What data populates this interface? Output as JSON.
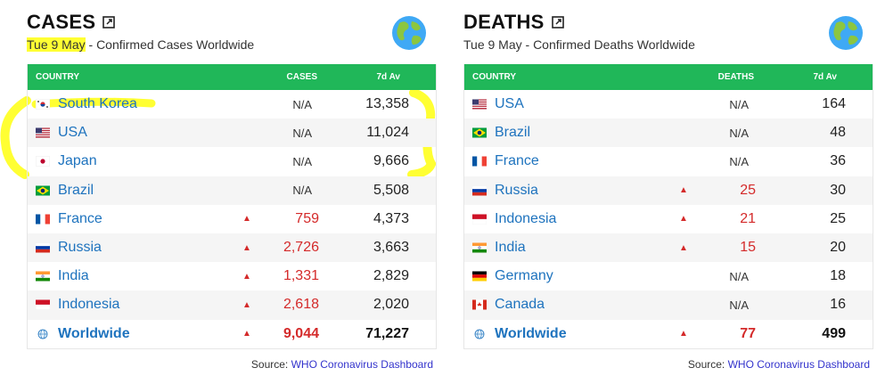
{
  "cases": {
    "title": "CASES",
    "date": "Tue 9 May",
    "subtitle_rest": " - Confirmed Cases Worldwide",
    "headers": {
      "country": "COUNTRY",
      "value": "CASES",
      "avg": "7d Av"
    },
    "rows": [
      {
        "country": "South Korea",
        "flag": "kr",
        "value": "N/A",
        "arrow": "",
        "avg": "13,358"
      },
      {
        "country": "USA",
        "flag": "us",
        "value": "N/A",
        "arrow": "",
        "avg": "11,024"
      },
      {
        "country": "Japan",
        "flag": "jp",
        "value": "N/A",
        "arrow": "",
        "avg": "9,666"
      },
      {
        "country": "Brazil",
        "flag": "br",
        "value": "N/A",
        "arrow": "",
        "avg": "5,508"
      },
      {
        "country": "France",
        "flag": "fr",
        "value": "759",
        "arrow": "▲",
        "avg": "4,373"
      },
      {
        "country": "Russia",
        "flag": "ru",
        "value": "2,726",
        "arrow": "▲",
        "avg": "3,663"
      },
      {
        "country": "India",
        "flag": "in",
        "value": "1,331",
        "arrow": "▲",
        "avg": "2,829"
      },
      {
        "country": "Indonesia",
        "flag": "id",
        "value": "2,618",
        "arrow": "▲",
        "avg": "2,020"
      }
    ],
    "total": {
      "country": "Worldwide",
      "value": "9,044",
      "arrow": "▲",
      "avg": "71,227"
    },
    "source_label": "Source: ",
    "source_link": "WHO Coronavirus Dashboard"
  },
  "deaths": {
    "title": "DEATHS",
    "date": "Tue 9 May",
    "subtitle_rest": " - Confirmed Deaths Worldwide",
    "headers": {
      "country": "COUNTRY",
      "value": "DEATHS",
      "avg": "7d Av"
    },
    "rows": [
      {
        "country": "USA",
        "flag": "us",
        "value": "N/A",
        "arrow": "",
        "avg": "164"
      },
      {
        "country": "Brazil",
        "flag": "br",
        "value": "N/A",
        "arrow": "",
        "avg": "48"
      },
      {
        "country": "France",
        "flag": "fr",
        "value": "N/A",
        "arrow": "",
        "avg": "36"
      },
      {
        "country": "Russia",
        "flag": "ru",
        "value": "25",
        "arrow": "▲",
        "avg": "30"
      },
      {
        "country": "Indonesia",
        "flag": "id",
        "value": "21",
        "arrow": "▲",
        "avg": "25"
      },
      {
        "country": "India",
        "flag": "in",
        "value": "15",
        "arrow": "▲",
        "avg": "20"
      },
      {
        "country": "Germany",
        "flag": "de",
        "value": "N/A",
        "arrow": "",
        "avg": "18"
      },
      {
        "country": "Canada",
        "flag": "ca",
        "value": "N/A",
        "arrow": "",
        "avg": "16"
      }
    ],
    "total": {
      "country": "Worldwide",
      "value": "77",
      "arrow": "▲",
      "avg": "499"
    },
    "source_label": "Source: ",
    "source_link": "WHO Coronavirus Dashboard"
  },
  "colors": {
    "header_green": "#20b759",
    "link_blue": "#1e73be",
    "up_red": "#d42a2a",
    "highlight": "#ffff33"
  }
}
